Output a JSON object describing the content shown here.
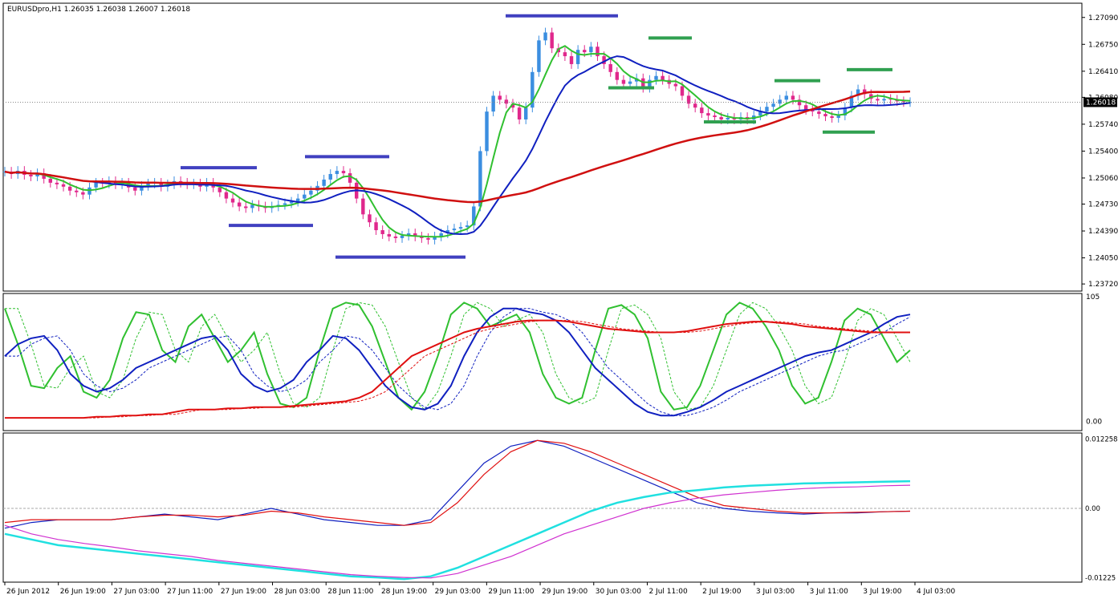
{
  "chart_title": "EURUSDpro,H1  1.26035 1.26038 1.26007 1.26018",
  "chart_data": [
    {
      "type": "candlestick",
      "panel": "main",
      "symbol": "EURUSDpro",
      "timeframe": "H1",
      "ohlc": {
        "open": 1.26035,
        "high": 1.26038,
        "low": 1.26007,
        "close": 1.26018
      },
      "current_price_label": "1.26018",
      "y_ticks": [
        {
          "label": "1.27090",
          "value": 1.2709
        },
        {
          "label": "1.26750",
          "value": 1.2675
        },
        {
          "label": "1.26410",
          "value": 1.2641
        },
        {
          "label": "1.26080",
          "value": 1.2608
        },
        {
          "label": "1.25740",
          "value": 1.2574
        },
        {
          "label": "1.25400",
          "value": 1.254
        },
        {
          "label": "1.25060",
          "value": 1.2506
        },
        {
          "label": "1.24730",
          "value": 1.2473
        },
        {
          "label": "1.24390",
          "value": 1.2439
        },
        {
          "label": "1.24050",
          "value": 1.2405
        },
        {
          "label": "1.23720",
          "value": 1.2372
        }
      ],
      "ylim": [
        1.2363,
        1.2727
      ],
      "x_ticks": [
        "26 Jun 2012",
        "26 Jun 19:00",
        "27 Jun 03:00",
        "27 Jun 11:00",
        "27 Jun 19:00",
        "28 Jun 03:00",
        "28 Jun 11:00",
        "28 Jun 19:00",
        "29 Jun 03:00",
        "29 Jun 11:00",
        "29 Jun 19:00",
        "30 Jun 03:00",
        "2 Jul 11:00",
        "2 Jul 19:00",
        "3 Jul 03:00",
        "3 Jul 11:00",
        "3 Jul 19:00",
        "4 Jul 03:00"
      ],
      "bar_count": 140,
      "candles_close": [
        1.2514,
        1.2511,
        1.2515,
        1.251,
        1.2508,
        1.2512,
        1.2505,
        1.25,
        1.2498,
        1.2495,
        1.249,
        1.2488,
        1.2485,
        1.2494,
        1.25,
        1.2499,
        1.2502,
        1.2498,
        1.25,
        1.2494,
        1.249,
        1.2496,
        1.2499,
        1.25,
        1.2495,
        1.2498,
        1.2502,
        1.25,
        1.2498,
        1.2499,
        1.2495,
        1.25,
        1.2494,
        1.2488,
        1.248,
        1.2475,
        1.247,
        1.2468,
        1.2472,
        1.247,
        1.2468,
        1.247,
        1.2472,
        1.2474,
        1.2476,
        1.248,
        1.2485,
        1.249,
        1.2496,
        1.2504,
        1.2511,
        1.2515,
        1.2512,
        1.25,
        1.248,
        1.246,
        1.245,
        1.244,
        1.2435,
        1.2432,
        1.243,
        1.2433,
        1.2436,
        1.2432,
        1.243,
        1.2428,
        1.2432,
        1.2436,
        1.244,
        1.2442,
        1.2444,
        1.2446,
        1.247,
        1.254,
        1.259,
        1.261,
        1.2605,
        1.26,
        1.2595,
        1.258,
        1.2595,
        1.264,
        1.268,
        1.269,
        1.267,
        1.2665,
        1.266,
        1.265,
        1.2668,
        1.2665,
        1.2672,
        1.266,
        1.265,
        1.264,
        1.263,
        1.2625,
        1.2628,
        1.2632,
        1.262,
        1.263,
        1.2635,
        1.263,
        1.2625,
        1.2622,
        1.261,
        1.26,
        1.2595,
        1.2588,
        1.2585,
        1.2583,
        1.258,
        1.2582,
        1.258,
        1.2583,
        1.258,
        1.2585,
        1.259,
        1.2596,
        1.26,
        1.2605,
        1.261,
        1.2605,
        1.2598,
        1.2592,
        1.259,
        1.2587,
        1.2584,
        1.2582,
        1.2585,
        1.2595,
        1.261,
        1.2618,
        1.2612,
        1.2606,
        1.2604,
        1.2606,
        1.2605,
        1.2603,
        1.2602,
        1.2602
      ],
      "horizontal_levels": [
        {
          "color": "#4040c0",
          "value": 1.2711
        },
        {
          "color": "#4040c0",
          "value": 1.2519
        },
        {
          "color": "#4040c0",
          "value": 1.2446
        },
        {
          "color": "#4040c0",
          "value": 1.2533
        },
        {
          "color": "#4040c0",
          "value": 1.2406
        },
        {
          "color": "#30a050",
          "value": 1.2683
        },
        {
          "color": "#30a050",
          "value": 1.262
        },
        {
          "color": "#30a050",
          "value": 1.2577
        },
        {
          "color": "#30a050",
          "value": 1.2629
        },
        {
          "color": "#30a050",
          "value": 1.2643
        },
        {
          "color": "#30a050",
          "value": 1.2564
        }
      ]
    },
    {
      "type": "line",
      "panel": "oscillator",
      "y_ticks": [
        {
          "label": "105",
          "value": 105
        },
        {
          "label": "0.00",
          "value": 0
        }
      ],
      "ylim": [
        -5,
        105
      ],
      "series": [
        {
          "color": "#30c030",
          "values": [
            95,
            65,
            30,
            28,
            45,
            55,
            25,
            20,
            35,
            70,
            92,
            90,
            60,
            50,
            80,
            90,
            70,
            50,
            60,
            75,
            40,
            15,
            12,
            20,
            60,
            95,
            100,
            98,
            80,
            50,
            20,
            10,
            25,
            55,
            90,
            100,
            95,
            80,
            85,
            90,
            75,
            40,
            20,
            15,
            20,
            60,
            95,
            98,
            90,
            70,
            25,
            10,
            12,
            30,
            60,
            90,
            100,
            95,
            80,
            60,
            30,
            15,
            20,
            50,
            85,
            95,
            90,
            70,
            50,
            60
          ]
        },
        {
          "color": "#1020c0",
          "values": [
            55,
            65,
            70,
            72,
            60,
            40,
            30,
            25,
            28,
            35,
            45,
            50,
            55,
            60,
            65,
            70,
            72,
            60,
            40,
            30,
            25,
            28,
            35,
            50,
            60,
            72,
            70,
            60,
            45,
            30,
            20,
            12,
            10,
            15,
            30,
            55,
            75,
            88,
            95,
            95,
            92,
            90,
            85,
            75,
            60,
            45,
            35,
            25,
            15,
            8,
            5,
            5,
            8,
            12,
            18,
            25,
            30,
            35,
            40,
            45,
            50,
            55,
            58,
            60,
            65,
            70,
            75,
            82,
            88,
            90
          ]
        },
        {
          "color": "#e01010",
          "values": [
            3,
            3,
            3,
            3,
            3,
            3,
            3,
            4,
            4,
            5,
            5,
            6,
            6,
            8,
            10,
            10,
            10,
            11,
            11,
            12,
            12,
            12,
            13,
            14,
            15,
            16,
            17,
            20,
            25,
            35,
            45,
            55,
            60,
            65,
            70,
            75,
            78,
            80,
            82,
            84,
            85,
            85,
            85,
            84,
            82,
            80,
            78,
            77,
            76,
            75,
            75,
            75,
            76,
            78,
            80,
            82,
            83,
            84,
            84,
            83,
            82,
            80,
            79,
            78,
            77,
            76,
            75,
            75,
            75,
            75
          ]
        }
      ]
    },
    {
      "type": "line",
      "panel": "macd",
      "y_ticks": [
        {
          "label": "0.012258",
          "value": 0.012258
        },
        {
          "label": "0.00",
          "value": 0
        },
        {
          "label": "-0.01225",
          "value": -0.01225
        }
      ],
      "ylim": [
        -0.01275,
        0.01275
      ],
      "series": [
        {
          "color": "#1020c0",
          "values": [
            -0.0035,
            -0.0025,
            -0.002,
            -0.002,
            -0.002,
            -0.0015,
            -0.001,
            -0.0015,
            -0.002,
            -0.001,
            0.0,
            -0.001,
            -0.002,
            -0.0025,
            -0.003,
            -0.003,
            -0.002,
            0.003,
            0.008,
            0.011,
            0.012,
            0.011,
            0.009,
            0.007,
            0.005,
            0.003,
            0.001,
            0.0,
            -0.0005,
            -0.0008,
            -0.001,
            -0.0008,
            -0.0008,
            -0.0006,
            -0.0005
          ]
        },
        {
          "color": "#e01010",
          "values": [
            -0.0025,
            -0.002,
            -0.002,
            -0.002,
            -0.002,
            -0.0015,
            -0.0012,
            -0.0012,
            -0.0015,
            -0.0012,
            -0.0005,
            -0.0008,
            -0.0015,
            -0.002,
            -0.0025,
            -0.003,
            -0.0025,
            0.001,
            0.006,
            0.01,
            0.012,
            0.0115,
            0.01,
            0.008,
            0.006,
            0.004,
            0.002,
            0.0005,
            0.0,
            -0.0005,
            -0.0008,
            -0.0008,
            -0.0007,
            -0.0006,
            -0.0005
          ]
        },
        {
          "color": "#20e0e0",
          "values": [
            -0.0045,
            -0.0055,
            -0.0065,
            -0.007,
            -0.0075,
            -0.008,
            -0.0085,
            -0.009,
            -0.0095,
            -0.01,
            -0.0105,
            -0.011,
            -0.0115,
            -0.012,
            -0.0122,
            -0.0125,
            -0.012,
            -0.0105,
            -0.0085,
            -0.0065,
            -0.0045,
            -0.0025,
            -0.0005,
            0.001,
            0.002,
            0.0028,
            0.0032,
            0.0037,
            0.004,
            0.0042,
            0.0044,
            0.0045,
            0.0046,
            0.0047,
            0.0048
          ]
        },
        {
          "color": "#d030d0",
          "values": [
            -0.003,
            -0.0045,
            -0.0055,
            -0.0062,
            -0.0068,
            -0.0075,
            -0.008,
            -0.0085,
            -0.0092,
            -0.0097,
            -0.0102,
            -0.0107,
            -0.0112,
            -0.0117,
            -0.012,
            -0.0122,
            -0.0123,
            -0.0115,
            -0.01,
            -0.0085,
            -0.0065,
            -0.0045,
            -0.003,
            -0.0015,
            0.0,
            0.001,
            0.0018,
            0.0024,
            0.0028,
            0.0032,
            0.0035,
            0.0037,
            0.0038,
            0.004,
            0.0041
          ]
        }
      ]
    }
  ]
}
